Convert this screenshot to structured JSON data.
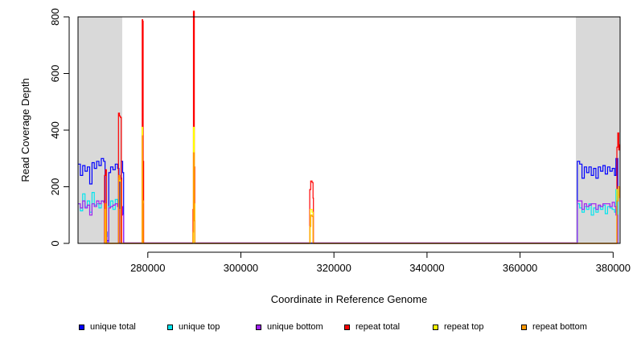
{
  "chart_data": {
    "type": "line",
    "title": "",
    "xlabel": "Coordinate in Reference Genome",
    "ylabel": "Read Coverage Depth",
    "xlim": [
      265000,
      381500
    ],
    "ylim": [
      0,
      800
    ],
    "xticks": [
      280000,
      300000,
      320000,
      340000,
      360000,
      380000
    ],
    "xtick_labels": [
      "280000",
      "300000",
      "320000",
      "340000",
      "360000",
      "380000"
    ],
    "yticks": [
      0,
      200,
      400,
      600,
      800
    ],
    "ytick_labels": [
      "0",
      "200",
      "400",
      "600",
      "800"
    ],
    "grid": false,
    "legend_position": "bottom",
    "shaded_regions": [
      [
        265000,
        274500
      ],
      [
        372000,
        381500
      ]
    ],
    "series": [
      {
        "name": "unique total",
        "color": "#0000ff",
        "points": [
          [
            265000,
            280
          ],
          [
            265500,
            240
          ],
          [
            266000,
            275
          ],
          [
            266500,
            255
          ],
          [
            267000,
            270
          ],
          [
            267500,
            210
          ],
          [
            268000,
            285
          ],
          [
            268500,
            265
          ],
          [
            269000,
            290
          ],
          [
            269500,
            275
          ],
          [
            270000,
            300
          ],
          [
            270500,
            290
          ],
          [
            270800,
            40
          ],
          [
            271200,
            10
          ],
          [
            271600,
            250
          ],
          [
            272000,
            270
          ],
          [
            272500,
            260
          ],
          [
            273000,
            280
          ],
          [
            273500,
            265
          ],
          [
            273800,
            240
          ],
          [
            274000,
            0
          ],
          [
            274300,
            290
          ],
          [
            274600,
            250
          ],
          [
            274800,
            0
          ],
          [
            372000,
            0
          ],
          [
            372300,
            290
          ],
          [
            372800,
            280
          ],
          [
            373300,
            230
          ],
          [
            373800,
            270
          ],
          [
            374300,
            250
          ],
          [
            374800,
            270
          ],
          [
            375300,
            240
          ],
          [
            375800,
            265
          ],
          [
            376300,
            230
          ],
          [
            376800,
            270
          ],
          [
            377300,
            255
          ],
          [
            377800,
            275
          ],
          [
            378300,
            245
          ],
          [
            378800,
            270
          ],
          [
            379300,
            255
          ],
          [
            379800,
            265
          ],
          [
            380300,
            240
          ],
          [
            380600,
            300
          ],
          [
            381000,
            0
          ]
        ]
      },
      {
        "name": "unique top",
        "color": "#00e5ee",
        "points": [
          [
            265000,
            140
          ],
          [
            265500,
            115
          ],
          [
            266000,
            175
          ],
          [
            266500,
            130
          ],
          [
            267000,
            150
          ],
          [
            267500,
            110
          ],
          [
            268000,
            180
          ],
          [
            268500,
            135
          ],
          [
            269000,
            140
          ],
          [
            269500,
            125
          ],
          [
            270000,
            150
          ],
          [
            270500,
            145
          ],
          [
            270800,
            20
          ],
          [
            271200,
            5
          ],
          [
            271600,
            130
          ],
          [
            272000,
            150
          ],
          [
            272500,
            120
          ],
          [
            273000,
            155
          ],
          [
            273500,
            135
          ],
          [
            273800,
            120
          ],
          [
            274000,
            0
          ],
          [
            372000,
            0
          ],
          [
            372300,
            140
          ],
          [
            372800,
            125
          ],
          [
            373300,
            110
          ],
          [
            373800,
            130
          ],
          [
            374300,
            120
          ],
          [
            374800,
            140
          ],
          [
            375300,
            100
          ],
          [
            375800,
            125
          ],
          [
            376300,
            110
          ],
          [
            376800,
            130
          ],
          [
            377300,
            120
          ],
          [
            377800,
            135
          ],
          [
            378300,
            105
          ],
          [
            378800,
            130
          ],
          [
            379300,
            125
          ],
          [
            379800,
            120
          ],
          [
            380300,
            110
          ],
          [
            380600,
            190
          ],
          [
            381000,
            0
          ]
        ]
      },
      {
        "name": "unique bottom",
        "color": "#a020f0",
        "points": [
          [
            265000,
            140
          ],
          [
            265500,
            125
          ],
          [
            266000,
            150
          ],
          [
            266500,
            125
          ],
          [
            267000,
            135
          ],
          [
            267500,
            100
          ],
          [
            268000,
            140
          ],
          [
            268500,
            130
          ],
          [
            269000,
            150
          ],
          [
            269500,
            140
          ],
          [
            270000,
            150
          ],
          [
            270500,
            145
          ],
          [
            270800,
            20
          ],
          [
            271200,
            5
          ],
          [
            271600,
            125
          ],
          [
            272000,
            130
          ],
          [
            272500,
            135
          ],
          [
            273000,
            140
          ],
          [
            273500,
            130
          ],
          [
            273800,
            120
          ],
          [
            274000,
            0
          ],
          [
            274300,
            130
          ],
          [
            274600,
            100
          ],
          [
            274800,
            0
          ],
          [
            274800,
            2
          ],
          [
            371900,
            2
          ],
          [
            372000,
            0
          ],
          [
            372300,
            150
          ],
          [
            372800,
            150
          ],
          [
            373300,
            120
          ],
          [
            373800,
            140
          ],
          [
            374300,
            130
          ],
          [
            374800,
            135
          ],
          [
            375300,
            140
          ],
          [
            375800,
            140
          ],
          [
            376300,
            120
          ],
          [
            376800,
            135
          ],
          [
            377300,
            130
          ],
          [
            377800,
            140
          ],
          [
            378300,
            140
          ],
          [
            378800,
            140
          ],
          [
            379300,
            130
          ],
          [
            379800,
            145
          ],
          [
            380300,
            130
          ],
          [
            380600,
            100
          ],
          [
            381000,
            0
          ]
        ]
      },
      {
        "name": "repeat total",
        "color": "#ff0000",
        "points": [
          [
            270600,
            0
          ],
          [
            270700,
            240
          ],
          [
            270900,
            260
          ],
          [
            271100,
            0
          ],
          [
            273600,
            0
          ],
          [
            273700,
            460
          ],
          [
            273900,
            450
          ],
          [
            274100,
            445
          ],
          [
            274300,
            230
          ],
          [
            274400,
            0
          ],
          [
            278700,
            0
          ],
          [
            278800,
            790
          ],
          [
            278900,
            785
          ],
          [
            279000,
            290
          ],
          [
            279100,
            0
          ],
          [
            289600,
            0
          ],
          [
            289700,
            120
          ],
          [
            289800,
            820
          ],
          [
            290000,
            270
          ],
          [
            290100,
            0
          ],
          [
            314700,
            0
          ],
          [
            314800,
            190
          ],
          [
            315000,
            220
          ],
          [
            315300,
            215
          ],
          [
            315500,
            160
          ],
          [
            315600,
            0
          ],
          [
            380700,
            0
          ],
          [
            380800,
            340
          ],
          [
            381000,
            390
          ],
          [
            381200,
            330
          ],
          [
            381400,
            350
          ]
        ]
      },
      {
        "name": "repeat top",
        "color": "#ffff00",
        "points": [
          [
            270700,
            0
          ],
          [
            270800,
            120
          ],
          [
            271000,
            0
          ],
          [
            273700,
            0
          ],
          [
            273800,
            230
          ],
          [
            274000,
            220
          ],
          [
            274200,
            0
          ],
          [
            278700,
            0
          ],
          [
            278800,
            410
          ],
          [
            278900,
            150
          ],
          [
            279000,
            0
          ],
          [
            289700,
            0
          ],
          [
            289800,
            410
          ],
          [
            290000,
            140
          ],
          [
            290100,
            0
          ],
          [
            314800,
            0
          ],
          [
            314900,
            120
          ],
          [
            315300,
            110
          ],
          [
            315500,
            0
          ],
          [
            380700,
            0
          ],
          [
            380800,
            190
          ],
          [
            381100,
            170
          ],
          [
            381400,
            180
          ]
        ]
      },
      {
        "name": "repeat bottom",
        "color": "#ff9900",
        "points": [
          [
            270800,
            0
          ],
          [
            270900,
            140
          ],
          [
            271000,
            40
          ],
          [
            271100,
            0
          ],
          [
            273700,
            0
          ],
          [
            273800,
            240
          ],
          [
            274000,
            225
          ],
          [
            274200,
            0
          ],
          [
            278700,
            0
          ],
          [
            278800,
            380
          ],
          [
            278900,
            140
          ],
          [
            279000,
            0
          ],
          [
            289600,
            0
          ],
          [
            289700,
            40
          ],
          [
            289800,
            320
          ],
          [
            290000,
            80
          ],
          [
            290100,
            0
          ],
          [
            314700,
            0
          ],
          [
            314800,
            60
          ],
          [
            315000,
            100
          ],
          [
            315300,
            95
          ],
          [
            315500,
            0
          ],
          [
            374800,
            0
          ],
          [
            380700,
            0
          ],
          [
            380800,
            150
          ],
          [
            381100,
            200
          ],
          [
            381400,
            160
          ]
        ]
      }
    ]
  },
  "legend": [
    {
      "label": "unique total",
      "color": "#0000ff"
    },
    {
      "label": "unique top",
      "color": "#00e5ee"
    },
    {
      "label": "unique bottom",
      "color": "#a020f0"
    },
    {
      "label": "repeat total",
      "color": "#ff0000"
    },
    {
      "label": "repeat top",
      "color": "#ffff00"
    },
    {
      "label": "repeat bottom",
      "color": "#ff9900"
    }
  ]
}
